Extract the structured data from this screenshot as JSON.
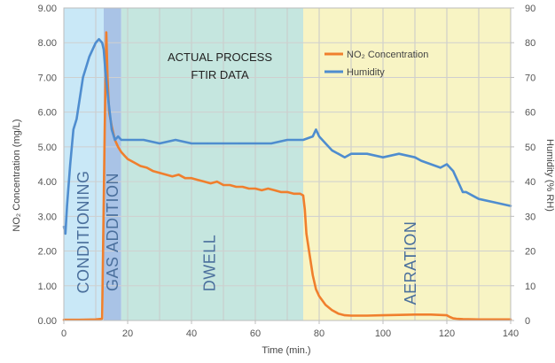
{
  "chart_data": {
    "type": "line",
    "title": "",
    "xlabel": "Time (min.)",
    "ylabel_left": "NO₂ Concentration (mg/L)",
    "ylabel_right": "Humidity (% RH)",
    "xlim": [
      0,
      140
    ],
    "ylim_left": [
      0,
      9
    ],
    "ylim_right": [
      0,
      90
    ],
    "x_ticks": [
      "0",
      "20",
      "40",
      "60",
      "80",
      "100",
      "120",
      "140"
    ],
    "y_left_ticks": [
      "0.00",
      "1.00",
      "2.00",
      "3.00",
      "4.00",
      "5.00",
      "6.00",
      "7.00",
      "8.00",
      "9.00"
    ],
    "y_right_ticks": [
      "0",
      "10",
      "20",
      "30",
      "40",
      "50",
      "60",
      "70",
      "80",
      "90"
    ],
    "annotation": [
      "ACTUAL PROCESS",
      "FTIR DATA"
    ],
    "legend_position": "top-right",
    "phases": [
      {
        "label": "CONDITIONING",
        "start": 0,
        "end": 12.5,
        "color": "#c9e8f7"
      },
      {
        "label": "GAS ADDITION",
        "start": 12.5,
        "end": 18,
        "color": "#a9c3e6"
      },
      {
        "label": "DWELL",
        "start": 18,
        "end": 75,
        "color": "#c5e6df"
      },
      {
        "label": "AERATION",
        "start": 75,
        "end": 140,
        "color": "#f8f4c4"
      }
    ],
    "series": [
      {
        "name": "NO₂ Concentration",
        "axis": "left",
        "color": "#f07f2d",
        "x": [
          0,
          5,
          10,
          12,
          12.8,
          13.3,
          13.7,
          14.2,
          15,
          16,
          17,
          18,
          19,
          20,
          22,
          24,
          26,
          28,
          30,
          32,
          34,
          36,
          38,
          40,
          42,
          44,
          46,
          48,
          50,
          52,
          54,
          56,
          58,
          60,
          62,
          64,
          66,
          68,
          70,
          72,
          74,
          75,
          75.5,
          76,
          77,
          78,
          79,
          80,
          82,
          84,
          86,
          88,
          90,
          95,
          100,
          105,
          110,
          115,
          120,
          121,
          122,
          123,
          125,
          130,
          135,
          140
        ],
        "y": [
          0.02,
          0.02,
          0.03,
          0.05,
          5.5,
          8.3,
          7.0,
          6.0,
          5.6,
          5.2,
          5.0,
          4.85,
          4.75,
          4.65,
          4.55,
          4.45,
          4.4,
          4.3,
          4.25,
          4.2,
          4.15,
          4.2,
          4.1,
          4.1,
          4.05,
          4.0,
          3.95,
          4.0,
          3.9,
          3.9,
          3.85,
          3.85,
          3.8,
          3.8,
          3.75,
          3.8,
          3.75,
          3.7,
          3.7,
          3.65,
          3.65,
          3.6,
          3.2,
          2.5,
          1.9,
          1.3,
          0.9,
          0.7,
          0.45,
          0.3,
          0.2,
          0.15,
          0.14,
          0.14,
          0.15,
          0.16,
          0.17,
          0.17,
          0.15,
          0.1,
          0.06,
          0.05,
          0.04,
          0.03,
          0.03,
          0.03
        ]
      },
      {
        "name": "Humidity",
        "axis": "right",
        "color": "#4f8dcf",
        "x": [
          0,
          0.5,
          1,
          2,
          3,
          4,
          5,
          6,
          7,
          8,
          9,
          10,
          11,
          12,
          12.5,
          13,
          14,
          15,
          16,
          17,
          18,
          20,
          25,
          30,
          35,
          40,
          45,
          50,
          55,
          60,
          65,
          70,
          75,
          78,
          79,
          80,
          82,
          84,
          86,
          88,
          90,
          95,
          100,
          105,
          110,
          112,
          115,
          118,
          120,
          121,
          122,
          123,
          124,
          125,
          126,
          128,
          130,
          135,
          140
        ],
        "y": [
          27,
          25,
          33,
          45,
          55,
          58,
          64,
          70,
          73,
          76,
          78,
          80,
          81,
          80,
          78,
          72,
          63,
          55,
          52,
          53,
          52,
          52,
          52,
          51,
          52,
          51,
          51,
          51,
          51,
          51,
          51,
          52,
          52,
          53,
          55,
          53,
          51,
          49,
          48,
          47,
          48,
          48,
          47,
          48,
          47,
          46,
          45,
          44,
          45,
          44,
          43,
          41,
          39,
          37,
          37,
          36,
          35,
          34,
          33
        ]
      }
    ]
  }
}
